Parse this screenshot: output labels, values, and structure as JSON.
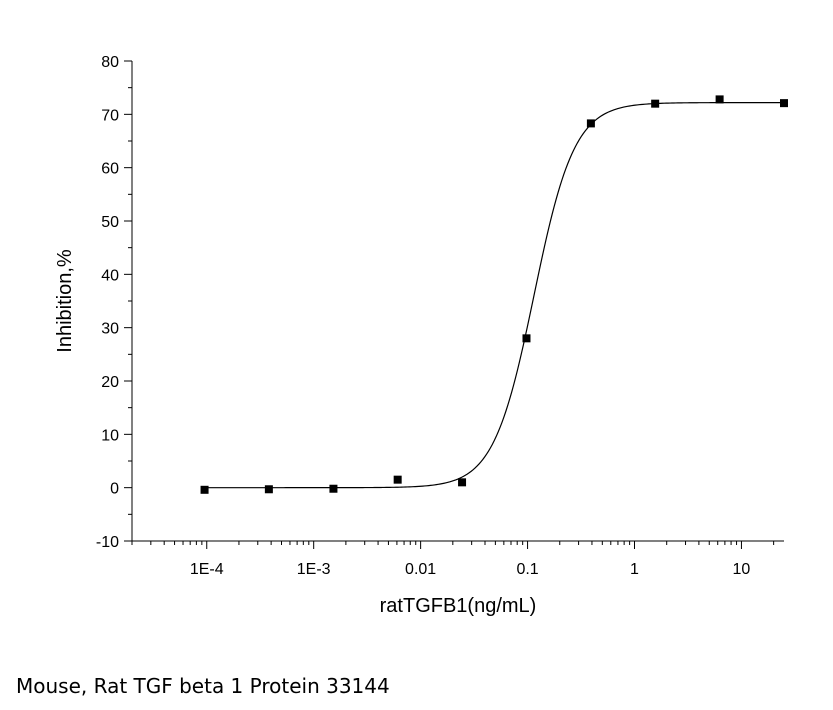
{
  "chart_data": {
    "type": "scatter",
    "xscale": "log",
    "xlabel": "ratTGFB1(ng/mL)",
    "ylabel": "Inhibition,%",
    "xlim": [
      2e-05,
      25
    ],
    "ylim": [
      -10,
      80
    ],
    "x_ticks": [
      {
        "value": 0.0001,
        "label": "1E-4"
      },
      {
        "value": 0.001,
        "label": "1E-3"
      },
      {
        "value": 0.01,
        "label": "0.01"
      },
      {
        "value": 0.1,
        "label": "0.1"
      },
      {
        "value": 1,
        "label": "1"
      },
      {
        "value": 10,
        "label": "10"
      }
    ],
    "y_ticks": [
      -10,
      0,
      10,
      20,
      30,
      40,
      50,
      60,
      70,
      80
    ],
    "grid": false,
    "points": [
      {
        "x": 9.54e-05,
        "y": -0.4
      },
      {
        "x": 0.000381,
        "y": -0.3
      },
      {
        "x": 0.00153,
        "y": -0.2
      },
      {
        "x": 0.0061,
        "y": 1.5
      },
      {
        "x": 0.0244,
        "y": 1.0
      },
      {
        "x": 0.0977,
        "y": 28.0
      },
      {
        "x": 0.391,
        "y": 68.3
      },
      {
        "x": 1.56,
        "y": 72.0
      },
      {
        "x": 6.25,
        "y": 72.8
      },
      {
        "x": 25,
        "y": 72.1
      }
    ],
    "fit": {
      "model": "4PL",
      "bottom": 0.0,
      "top": 72.2,
      "ec50": 0.115,
      "hill": 2.3,
      "x_range": [
        9.54e-05,
        25
      ]
    }
  },
  "caption": "Mouse, Rat TGF beta 1 Protein 33144"
}
